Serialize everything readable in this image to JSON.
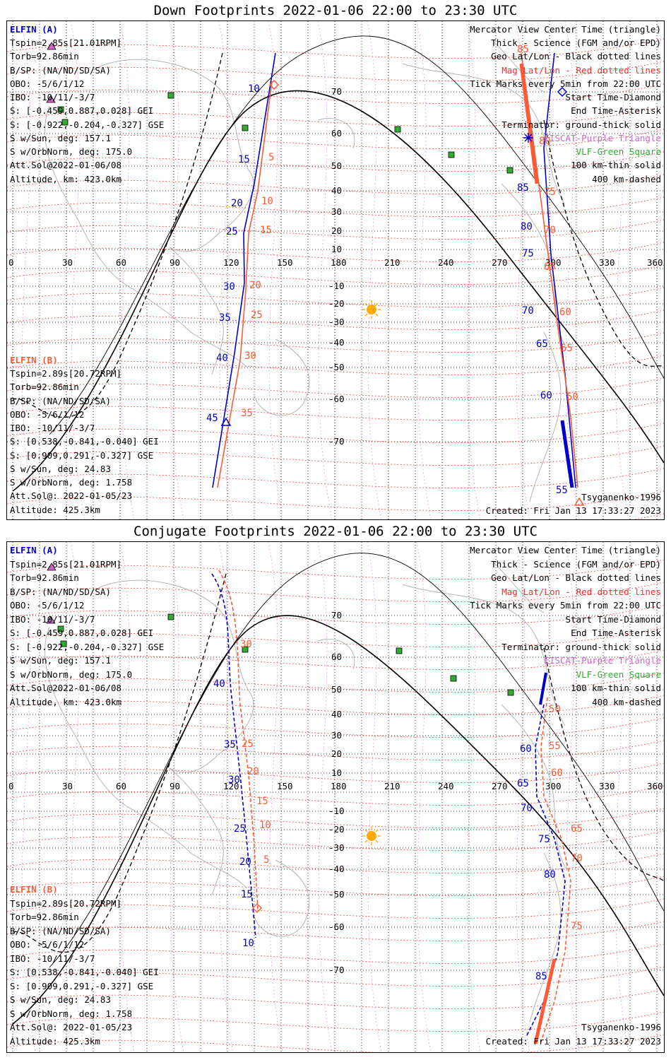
{
  "panels": [
    {
      "id": "down",
      "title": "Down Footprints 2022-01-06 22:00 to 23:30 UTC",
      "a_header": "ELFIN (A)",
      "a_lines": [
        "Tspin=2.85s[21.01RPM]",
        "Torb=92.86min",
        "B/SP: (NA/ND/SD/SA)",
        "OBO: -5/6/1/12",
        "IBO: -10/11/-3/7",
        "S: [-0.459,0.887,0.028] GEI",
        "S: [-0.922,-0.204,-0.327] GSE",
        "S w/Sun, deg: 157.1",
        "S w/OrbNorm, deg: 175.0",
        "Att.Sol@2022-01-06/08",
        "Altitude, km: 423.0km"
      ],
      "b_header": "ELFIN (B)",
      "b_lines": [
        "Tspin=2.89s[20.72RPM]",
        "Torb=92.86min",
        "B/SP: (NA/ND/SD/SA)",
        "OBO: -5/6/1/12",
        "IBO: -10/11/-3/7",
        "S: [0.538,-0.841,-0.040] GEI",
        "S: [0.909,0.291,-0.327] GSE",
        "S w/Sun, deg: 24.83",
        "S w/OrbNorm, deg: 1.758",
        "Att.Sol@: 2022-01-05/23",
        "Altitude: 425.3km"
      ],
      "legend": [
        {
          "text": "Mercator View Center Time (triangle)",
          "color": "#000000"
        },
        {
          "text": "Thick - Science (FGM and/or EPD)",
          "color": "#000000"
        },
        {
          "text": "Geo Lat/Lon - Black dotted lines",
          "color": "#000000"
        },
        {
          "text": "Mag Lat/Lon - Red dotted lines",
          "color": "#ff2a2a"
        },
        {
          "text": "Tick Marks every 5min from 22:00 UTC",
          "color": "#000000"
        },
        {
          "text": "Start Time-Diamond",
          "color": "#000000"
        },
        {
          "text": "End Time-Asterisk",
          "color": "#000000"
        },
        {
          "text": "Terminator: ground-thick solid",
          "color": "#000000"
        },
        {
          "text": "EISCAT-Purple Triangle",
          "color": "#cc66cc"
        },
        {
          "text": "VLF-Green Square",
          "color": "#33aa33"
        },
        {
          "text": "100 km-thin solid",
          "color": "#000000"
        },
        {
          "text": "400 km-dashed",
          "color": "#000000"
        }
      ],
      "model": "Tsyganenko-1996",
      "created": "Created: Fri Jan 13 17:33:27 2023",
      "a_track_labels": [
        "10",
        "15",
        "20",
        "25",
        "30",
        "35",
        "40",
        "45",
        "55",
        "60",
        "65",
        "70",
        "75",
        "80",
        "85"
      ],
      "b_track_labels": [
        "5",
        "10",
        "15",
        "20",
        "25",
        "30",
        "35",
        "50",
        "55",
        "60",
        "65",
        "70",
        "75",
        "80",
        "85"
      ]
    },
    {
      "id": "conjugate",
      "title": "Conjugate Footprints 2022-01-06 22:00 to 23:30 UTC",
      "a_header": "ELFIN (A)",
      "a_lines": [
        "Tspin=2.85s[21.01RPM]",
        "Torb=92.86min",
        "B/SP: (NA/ND/SD/SA)",
        "OBO: -5/6/1/12",
        "IBO: -10/11/-3/7",
        "S: [-0.459,0.887,0.028] GEI",
        "S: [-0.922,-0.204,-0.327] GSE",
        "S w/Sun, deg: 157.1",
        "S w/OrbNorm, deg: 175.0",
        "Att.Sol@2022-01-06/08",
        "Altitude, km: 423.0km"
      ],
      "b_header": "ELFIN (B)",
      "b_lines": [
        "Tspin=2.89s[20.72RPM]",
        "Torb=92.86min",
        "B/SP: (NA/ND/SD/SA)",
        "OBO: -5/6/1/12",
        "IBO: -10/11/-3/7",
        "S: [0.538,-0.841,-0.040] GEI",
        "S: [0.909,0.291,-0.327] GSE",
        "S w/Sun, deg: 24.83",
        "S w/OrbNorm, deg: 1.758",
        "Att.Sol@: 2022-01-05/23",
        "Altitude: 425.3km"
      ],
      "legend": [
        {
          "text": "Mercator View Center Time (triangle)",
          "color": "#000000"
        },
        {
          "text": "Thick - Science (FGM and/or EPD)",
          "color": "#000000"
        },
        {
          "text": "Geo Lat/Lon - Black dotted lines",
          "color": "#000000"
        },
        {
          "text": "Mag Lat/Lon - Red dotted lines",
          "color": "#ff2a2a"
        },
        {
          "text": "Tick Marks every 5min from 22:00 UTC",
          "color": "#000000"
        },
        {
          "text": "Start Time-Diamond",
          "color": "#000000"
        },
        {
          "text": "End Time-Asterisk",
          "color": "#000000"
        },
        {
          "text": "Terminator: ground-thick solid",
          "color": "#000000"
        },
        {
          "text": "EISCAT-Purple Triangle",
          "color": "#cc66cc"
        },
        {
          "text": "VLF-Green Square",
          "color": "#33aa33"
        },
        {
          "text": "100 km-thin solid",
          "color": "#000000"
        },
        {
          "text": "400 km-dashed",
          "color": "#000000"
        }
      ],
      "model": "Tsyganenko-1996",
      "created": "Created: Fri Jan 13 17:33:27 2023",
      "a_track_labels": [
        "10",
        "15",
        "20",
        "25",
        "30",
        "35",
        "40",
        "60",
        "65",
        "70",
        "75",
        "80",
        "85"
      ],
      "b_track_labels": [
        "5",
        "10",
        "15",
        "20",
        "25",
        "30",
        "50",
        "55",
        "60",
        "65",
        "70",
        "75"
      ]
    }
  ],
  "lon_labels": [
    "0",
    "30",
    "60",
    "90",
    "120",
    "150",
    "180",
    "210",
    "240",
    "270",
    "300",
    "330",
    "360"
  ],
  "lat_labels": [
    "70",
    "60",
    "50",
    "40",
    "30",
    "20",
    "10",
    "-10",
    "-20",
    "-30",
    "-40",
    "-50",
    "-60",
    "-70"
  ],
  "colors": {
    "elfin_a": "#0000cc",
    "elfin_b": "#ff5a36",
    "mag_grid": "#ff2a2a",
    "eiscat": "#cc66cc",
    "vlf": "#33aa33",
    "coast": "#b4b4b4",
    "sun": "#ffaa00"
  }
}
